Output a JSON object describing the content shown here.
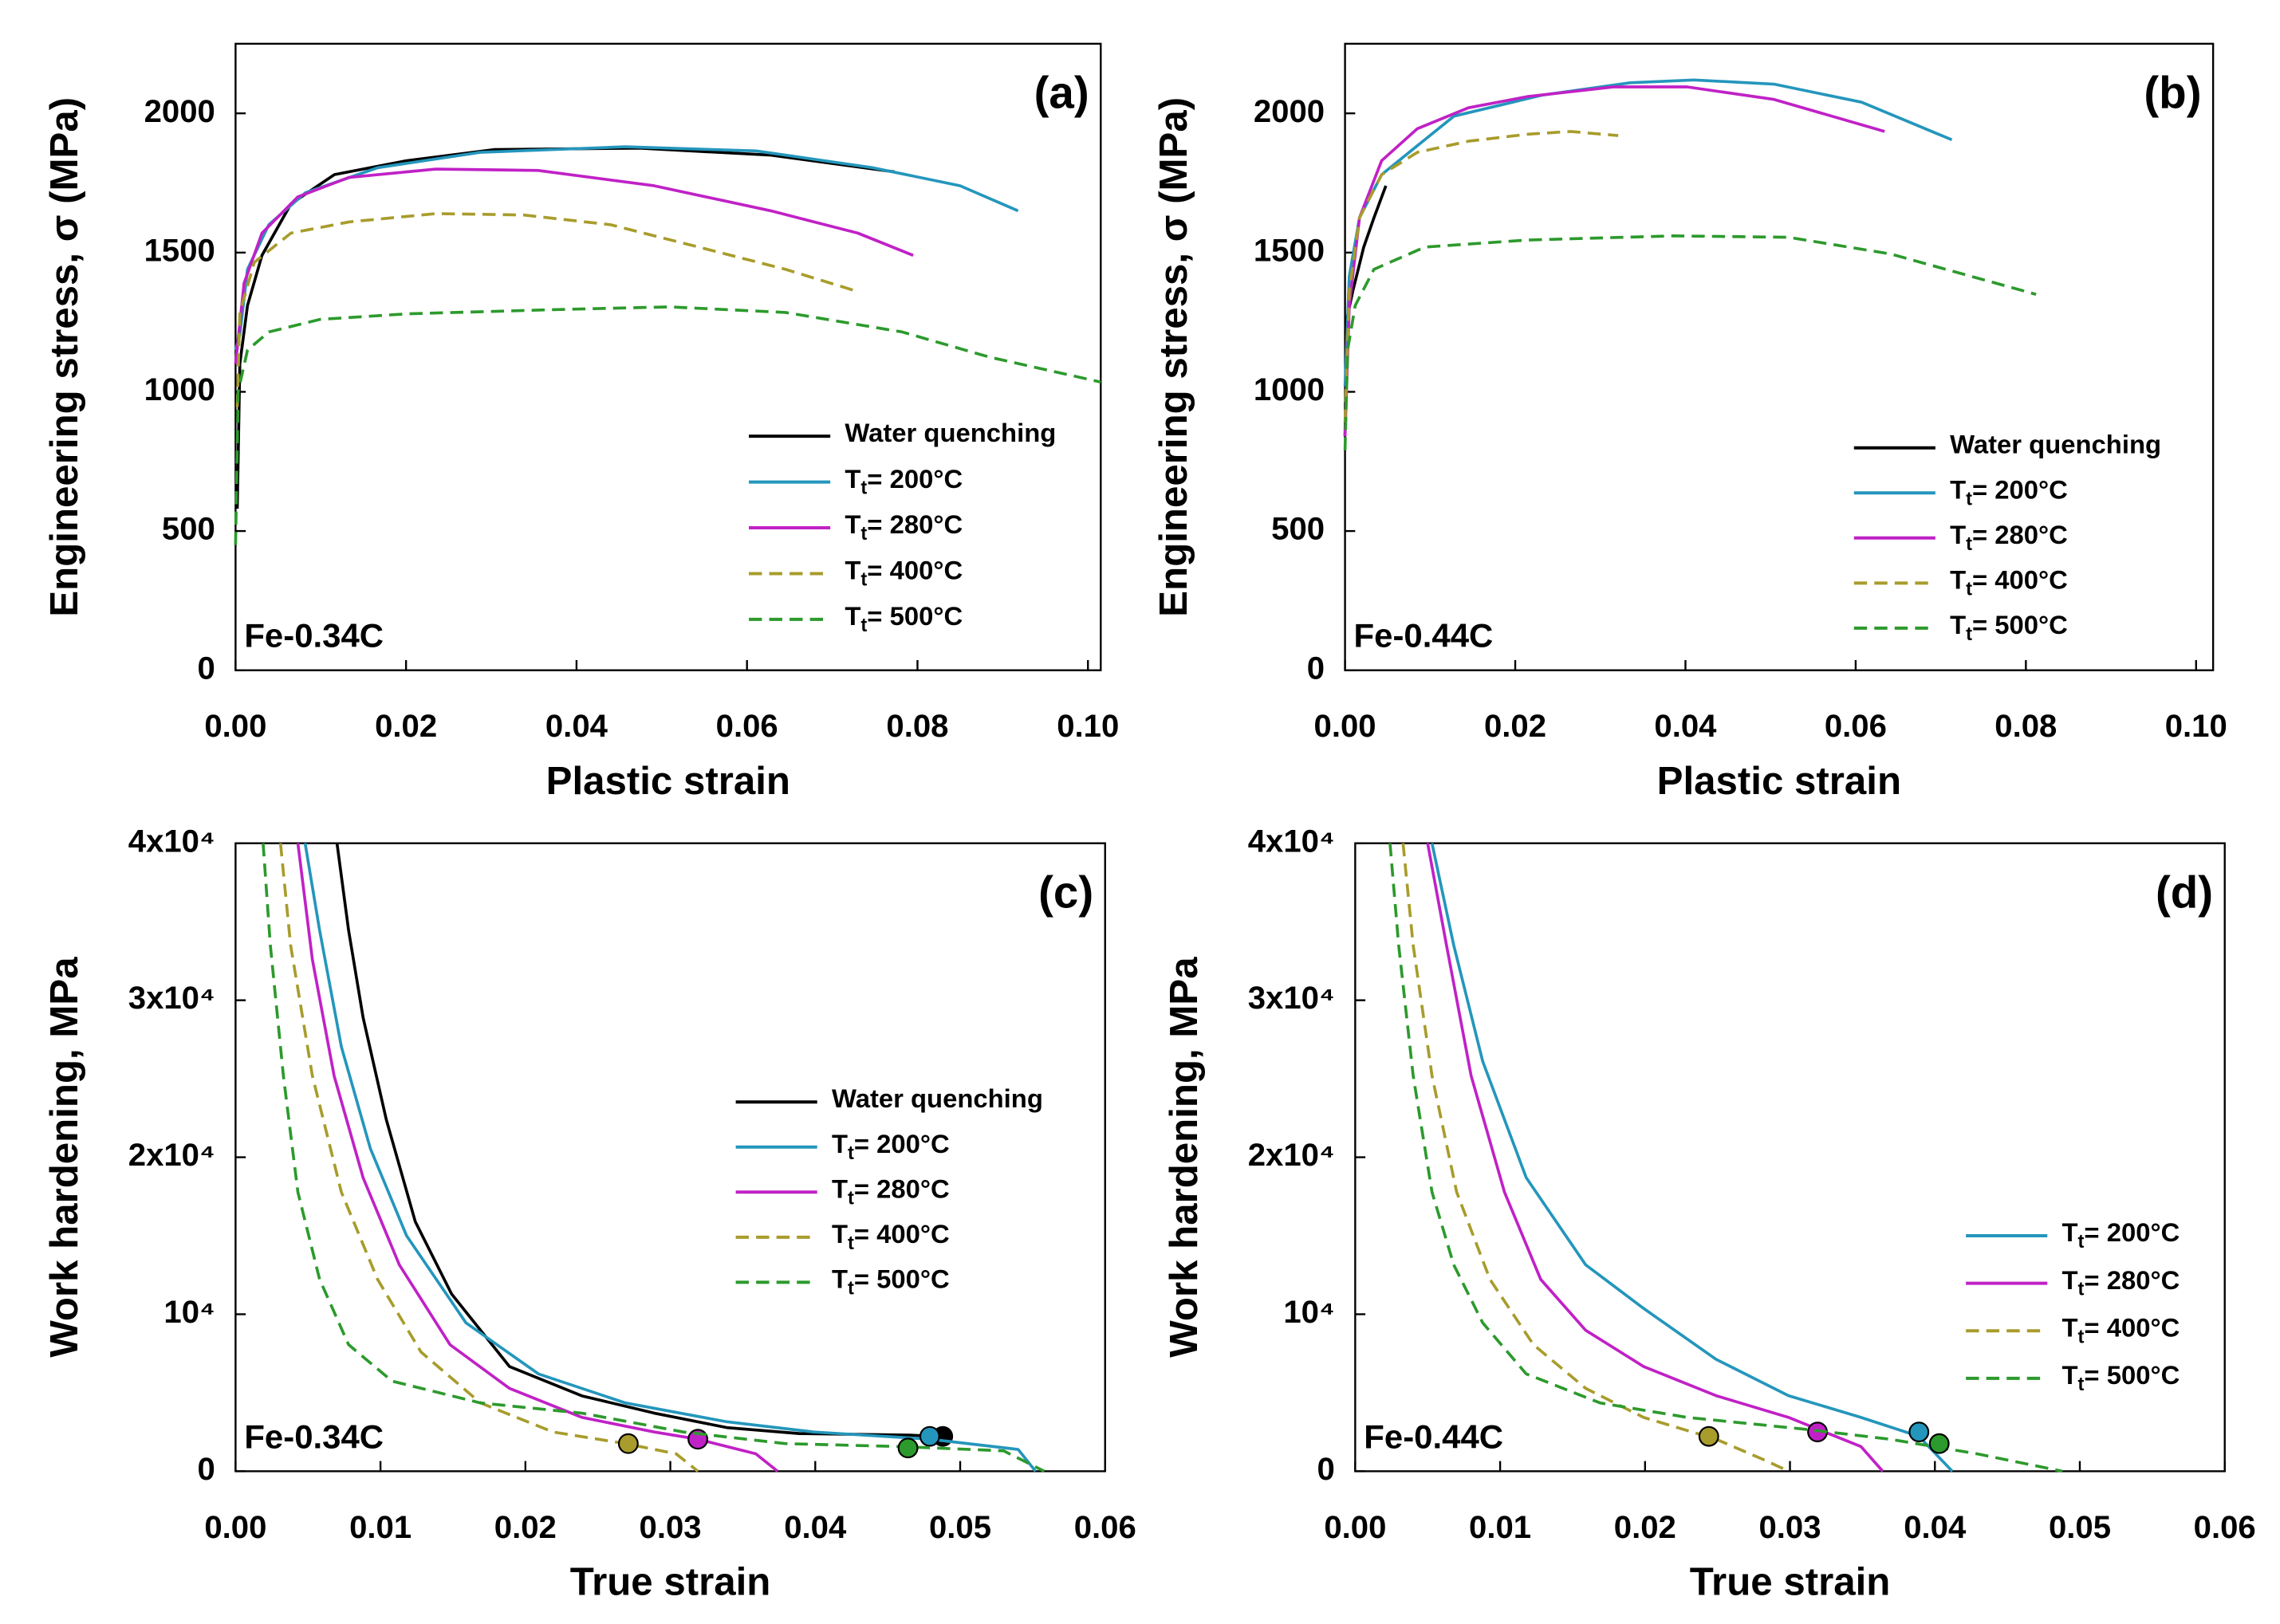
{
  "chart_data": [
    {
      "type": "line",
      "panel": "(a)",
      "annotation": "Fe-0.34C",
      "x_label": "Plastic strain",
      "y_label": "Engineering stress, σ (MPa)",
      "xlim": [
        0,
        0.1015
      ],
      "xticks": [
        {
          "value": 0,
          "label": "0.00"
        },
        0.02,
        0.04,
        0.06,
        0.08,
        {
          "value": 0.1,
          "label": "0.10"
        }
      ],
      "ylim": [
        0,
        2250
      ],
      "yticks": [
        0,
        500,
        1000,
        1500,
        2000
      ],
      "legend": "lower right",
      "series": [
        {
          "name": "Water quenching",
          "color": "#000000",
          "dash": false,
          "x": [
            0.0002,
            0.0005,
            0.0014,
            0.0031,
            0.0065,
            0.0116,
            0.0201,
            0.0304,
            0.0474,
            0.0628,
            0.0773
          ],
          "values": [
            580,
            1100,
            1310,
            1490,
            1675,
            1780,
            1830,
            1870,
            1875,
            1850,
            1790
          ]
        },
        {
          "name": "Tt= 200°C",
          "color": "#2496bc",
          "dash": false,
          "x": [
            0,
            0.0005,
            0.0014,
            0.0039,
            0.0082,
            0.0167,
            0.0287,
            0.0457,
            0.0611,
            0.0747,
            0.085,
            0.0918
          ],
          "values": [
            1150,
            1205,
            1440,
            1600,
            1715,
            1805,
            1860,
            1880,
            1865,
            1805,
            1740,
            1650
          ]
        },
        {
          "name": "Tt= 280°C",
          "color": "#c021c6",
          "dash": false,
          "x": [
            0,
            0.001,
            0.0031,
            0.0073,
            0.0133,
            0.0235,
            0.0355,
            0.0491,
            0.0628,
            0.073,
            0.0795
          ],
          "values": [
            1100,
            1390,
            1570,
            1700,
            1770,
            1800,
            1795,
            1740,
            1650,
            1570,
            1490
          ]
        },
        {
          "name": "Tt= 400°C",
          "color": "#a89c2c",
          "dash": true,
          "x": [
            0.0002,
            0.0005,
            0.0022,
            0.0065,
            0.0133,
            0.0235,
            0.0338,
            0.044,
            0.0543,
            0.0645,
            0.073
          ],
          "values": [
            945,
            1285,
            1465,
            1570,
            1610,
            1640,
            1635,
            1600,
            1520,
            1440,
            1360
          ]
        },
        {
          "name": "Tt= 500°C",
          "color": "#2c9a2c",
          "dash": true,
          "x": [
            0,
            0.0003,
            0.0014,
            0.0039,
            0.0099,
            0.0201,
            0.0372,
            0.0509,
            0.0645,
            0.0782,
            0.0884,
            0.1015
          ],
          "values": [
            450,
            1000,
            1150,
            1215,
            1260,
            1280,
            1295,
            1305,
            1285,
            1215,
            1125,
            1035
          ]
        }
      ]
    },
    {
      "type": "line",
      "panel": "(b)",
      "annotation": "Fe-0.44C",
      "x_label": "Plastic strain",
      "y_label": "Engineering stress, σ (MPa)",
      "xlim": [
        0,
        0.102
      ],
      "xticks": [
        {
          "value": 0,
          "label": "0.00"
        },
        0.02,
        0.04,
        0.06,
        0.08,
        {
          "value": 0.1,
          "label": "0.10"
        }
      ],
      "ylim": [
        0,
        2250
      ],
      "yticks": [
        0,
        500,
        1000,
        1500,
        2000
      ],
      "legend": "lower right",
      "series": [
        {
          "name": "Water quenching",
          "color": "#000000",
          "dash": false,
          "x": [
            0,
            0.0002,
            0.0009,
            0.0022,
            0.0034,
            0.0048
          ],
          "values": [
            840,
            1260,
            1360,
            1520,
            1625,
            1740
          ]
        },
        {
          "name": "Tt= 200°C",
          "color": "#2496bc",
          "dash": false,
          "x": [
            0,
            0.0005,
            0.0017,
            0.0043,
            0.0128,
            0.0231,
            0.0335,
            0.041,
            0.0504,
            0.0607,
            0.0713
          ],
          "values": [
            1020,
            1415,
            1625,
            1780,
            1990,
            2065,
            2110,
            2120,
            2105,
            2040,
            1905
          ]
        },
        {
          "name": "Tt= 280°C",
          "color": "#c021c6",
          "dash": false,
          "x": [
            0,
            0.0005,
            0.0017,
            0.0043,
            0.0085,
            0.0145,
            0.0214,
            0.0316,
            0.0402,
            0.0504,
            0.0634
          ],
          "values": [
            840,
            1310,
            1625,
            1830,
            1945,
            2020,
            2060,
            2095,
            2095,
            2050,
            1935
          ]
        },
        {
          "name": "Tt= 400°C",
          "color": "#a89c2c",
          "dash": true,
          "x": [
            0,
            0.0005,
            0.0017,
            0.0043,
            0.0085,
            0.0145,
            0.0214,
            0.0265,
            0.0321
          ],
          "values": [
            890,
            1360,
            1625,
            1780,
            1860,
            1900,
            1925,
            1935,
            1920
          ]
        },
        {
          "name": "Tt= 500°C",
          "color": "#2c9a2c",
          "dash": true,
          "x": [
            0,
            0.0003,
            0.0012,
            0.0034,
            0.0094,
            0.0214,
            0.0385,
            0.0521,
            0.0641,
            0.0812
          ],
          "values": [
            790,
            1150,
            1310,
            1440,
            1520,
            1545,
            1560,
            1555,
            1495,
            1350
          ]
        }
      ]
    },
    {
      "type": "line",
      "panel": "(c)",
      "annotation": "Fe-0.34C",
      "x_label": "True strain",
      "y_label": "Work hardening, MPa",
      "xlim": [
        0,
        0.06
      ],
      "xticks": [
        {
          "value": 0,
          "label": "0.00"
        },
        0.01,
        0.02,
        0.03,
        0.04,
        0.05,
        0.06
      ],
      "ylim": [
        0,
        40000
      ],
      "yticks": [
        0,
        {
          "value": 10000,
          "label": "10⁴"
        },
        {
          "value": 20000,
          "label": "2x10⁴"
        },
        {
          "value": 30000,
          "label": "3x10⁴"
        },
        {
          "value": 40000,
          "label": "4x10⁴"
        }
      ],
      "legend": "center right",
      "series": [
        {
          "name": "Water quenching",
          "color": "#000000",
          "dash": false,
          "x": [
            0.007,
            0.0078,
            0.0088,
            0.0104,
            0.0124,
            0.0149,
            0.0189,
            0.0239,
            0.0289,
            0.0339,
            0.0389,
            0.0465,
            0.0488
          ],
          "values": [
            40000,
            34450,
            28900,
            22400,
            15900,
            11300,
            6670,
            4800,
            3700,
            2780,
            2400,
            2300,
            2200
          ],
          "marker_x": 0.0488,
          "marker_y": 2220
        },
        {
          "name": "Tt= 200°C",
          "color": "#2496bc",
          "dash": false,
          "x": [
            0.0048,
            0.0058,
            0.0073,
            0.0093,
            0.0118,
            0.0159,
            0.0209,
            0.0269,
            0.0339,
            0.0399,
            0.0479,
            0.054,
            0.0552
          ],
          "values": [
            40000,
            34450,
            27040,
            20560,
            15000,
            9450,
            6200,
            4350,
            3150,
            2500,
            2040,
            1390,
            0
          ],
          "marker_x": 0.0479,
          "marker_y": 2220
        },
        {
          "name": "Tt= 280°C",
          "color": "#c021c6",
          "dash": false,
          "x": [
            0.0043,
            0.0053,
            0.0068,
            0.0088,
            0.0113,
            0.0148,
            0.0189,
            0.0239,
            0.0289,
            0.0319,
            0.0359,
            0.0374
          ],
          "values": [
            40000,
            32600,
            25190,
            18700,
            13150,
            8060,
            5280,
            3430,
            2500,
            2040,
            1110,
            0
          ],
          "marker_x": 0.0319,
          "marker_y": 2040
        },
        {
          "name": "Tt= 400°C",
          "color": "#a89c2c",
          "dash": true,
          "x": [
            0.0031,
            0.0038,
            0.0053,
            0.0073,
            0.0098,
            0.0128,
            0.0169,
            0.0219,
            0.0269,
            0.0304,
            0.0319
          ],
          "values": [
            40000,
            33500,
            25190,
            17780,
            12220,
            7590,
            4350,
            2500,
            1760,
            1110,
            0
          ],
          "marker_x": 0.0271,
          "marker_y": 1760
        },
        {
          "name": "Tt= 500°C",
          "color": "#2c9a2c",
          "dash": true,
          "x": [
            0.0019,
            0.0024,
            0.0033,
            0.0043,
            0.0058,
            0.0078,
            0.0108,
            0.0169,
            0.0239,
            0.0309,
            0.0379,
            0.0459,
            0.053,
            0.0558
          ],
          "values": [
            40000,
            33500,
            25190,
            17780,
            12220,
            8060,
            5740,
            4350,
            3700,
            2500,
            1760,
            1570,
            1300,
            0
          ],
          "marker_x": 0.0464,
          "marker_y": 1480
        }
      ]
    },
    {
      "type": "line",
      "panel": "(d)",
      "annotation": "Fe-0.44C",
      "x_label": "True strain",
      "y_label": "Work hardening, MPa",
      "xlim": [
        0,
        0.06
      ],
      "xticks": [
        {
          "value": 0,
          "label": "0.00"
        },
        0.01,
        0.02,
        0.03,
        0.04,
        0.05,
        0.06
      ],
      "ylim": [
        0,
        40000
      ],
      "yticks": [
        0,
        {
          "value": 10000,
          "label": "10⁴"
        },
        {
          "value": 20000,
          "label": "2x10⁴"
        },
        {
          "value": 30000,
          "label": "3x10⁴"
        },
        {
          "value": 40000,
          "label": "4x10⁴"
        }
      ],
      "legend": "lower right",
      "series": [
        {
          "name": "Tt= 200°C",
          "color": "#2496bc",
          "dash": false,
          "x": [
            0.0053,
            0.0068,
            0.0088,
            0.0118,
            0.0159,
            0.0199,
            0.0249,
            0.0299,
            0.0349,
            0.0389,
            0.0412
          ],
          "values": [
            40000,
            33500,
            26100,
            18700,
            13150,
            10370,
            7130,
            4815,
            3430,
            2220,
            0
          ],
          "marker_x": 0.0389,
          "marker_y": 2500
        },
        {
          "name": "Tt= 280°C",
          "color": "#c021c6",
          "dash": false,
          "x": [
            0.005,
            0.0063,
            0.008,
            0.0103,
            0.0128,
            0.0159,
            0.0199,
            0.0249,
            0.0299,
            0.0324,
            0.0349,
            0.0364
          ],
          "values": [
            40000,
            33500,
            25190,
            17780,
            12220,
            8980,
            6670,
            4815,
            3430,
            2500,
            1570,
            0
          ],
          "marker_x": 0.0319,
          "marker_y": 2500
        },
        {
          "name": "Tt= 400°C",
          "color": "#a89c2c",
          "dash": true,
          "x": [
            0.0033,
            0.004,
            0.0053,
            0.007,
            0.0093,
            0.0123,
            0.0159,
            0.0199,
            0.0249,
            0.0284,
            0.0299
          ],
          "values": [
            40000,
            33500,
            25190,
            17780,
            12220,
            8060,
            5280,
            3430,
            2040,
            650,
            0
          ],
          "marker_x": 0.0244,
          "marker_y": 2220
        },
        {
          "name": "Tt= 500°C",
          "color": "#2c9a2c",
          "dash": true,
          "x": [
            0.0024,
            0.003,
            0.004,
            0.0053,
            0.0068,
            0.0088,
            0.0118,
            0.0169,
            0.0229,
            0.0309,
            0.0369,
            0.0429,
            0.0488
          ],
          "values": [
            40000,
            33500,
            25190,
            17780,
            13150,
            9450,
            6200,
            4350,
            3430,
            2690,
            2040,
            1110,
            0
          ],
          "marker_x": 0.0403,
          "marker_y": 1760
        }
      ]
    }
  ]
}
